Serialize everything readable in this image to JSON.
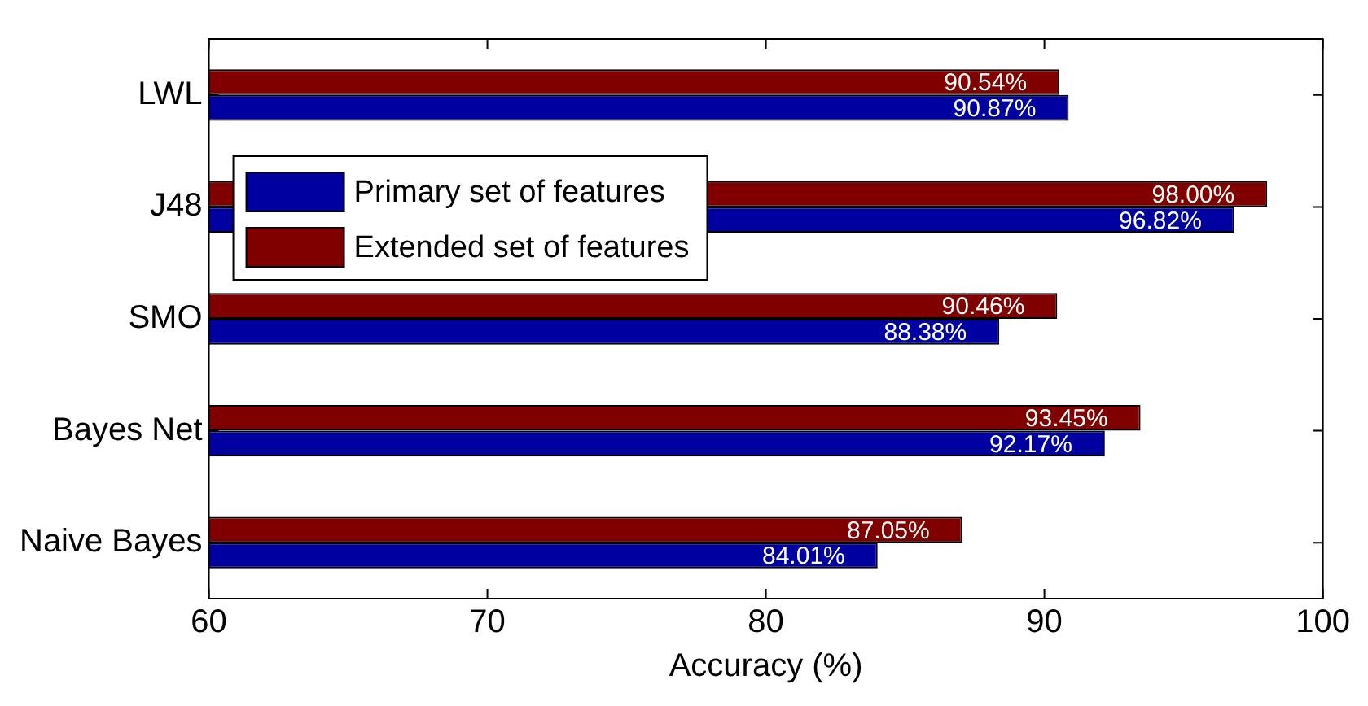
{
  "chart_data": {
    "type": "bar",
    "orientation": "horizontal",
    "xlabel": "Accuracy (%)",
    "categories": [
      "LWL",
      "J48",
      "SMO",
      "Bayes Net",
      "Naive Bayes"
    ],
    "series": [
      {
        "name": "Primary set of features",
        "color": "#0000a0",
        "values": [
          90.87,
          96.82,
          88.38,
          92.17,
          84.01
        ],
        "value_labels": [
          "90.87%",
          "96.82%",
          "88.38%",
          "92.17%",
          "84.01%"
        ]
      },
      {
        "name": "Extended set of features",
        "color": "#800000",
        "values": [
          90.54,
          98.0,
          90.46,
          93.45,
          87.05
        ],
        "value_labels": [
          "90.54%",
          "98.00%",
          "90.46%",
          "93.45%",
          "87.05%"
        ]
      }
    ],
    "xlim": [
      60,
      100
    ],
    "xticks": [
      60,
      70,
      80,
      90,
      100
    ],
    "grid": false,
    "legend": "top left"
  }
}
